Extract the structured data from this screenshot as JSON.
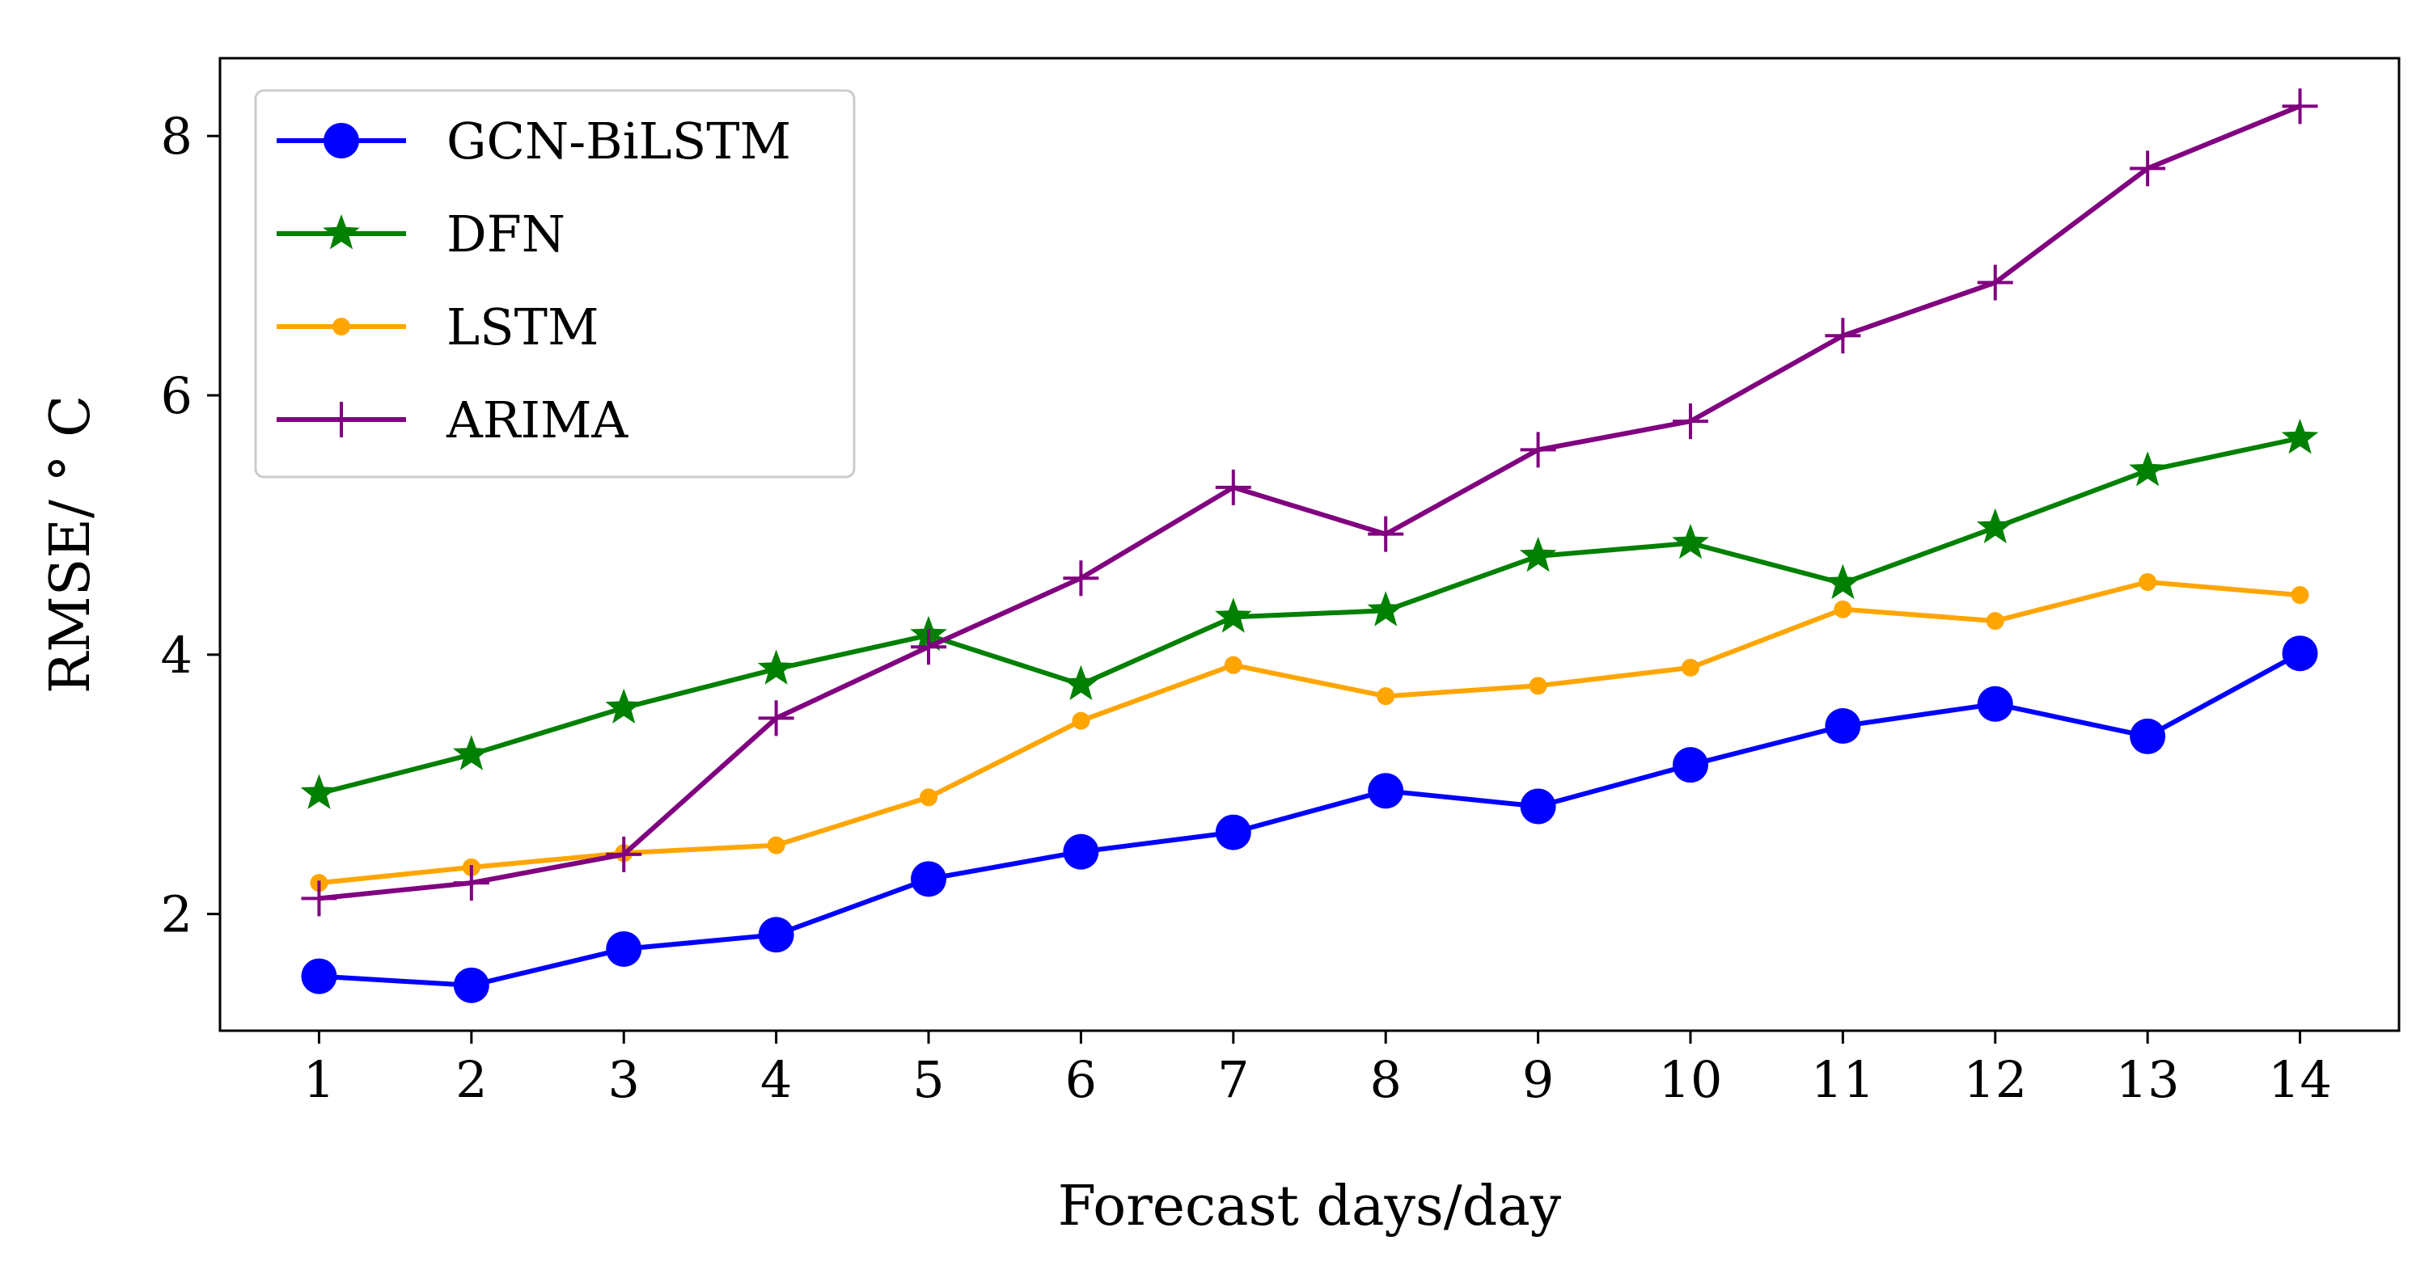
{
  "chart_data": {
    "type": "line",
    "xlabel": "Forecast days/day",
    "ylabel": "RMSE/ ° C",
    "x": [
      1,
      2,
      3,
      4,
      5,
      6,
      7,
      8,
      9,
      10,
      11,
      12,
      13,
      14
    ],
    "xlim": [
      0.35,
      14.65
    ],
    "ylim": [
      1.1,
      8.6
    ],
    "yticks": [
      2,
      4,
      6,
      8
    ],
    "grid": false,
    "legend_position": "top-left",
    "series": [
      {
        "name": "GCN-BiLSTM",
        "color": "#0000ff",
        "marker": "circle",
        "values": [
          1.52,
          1.45,
          1.73,
          1.84,
          2.27,
          2.48,
          2.63,
          2.95,
          2.83,
          3.15,
          3.45,
          3.62,
          3.37,
          4.01
        ]
      },
      {
        "name": "DFN",
        "color": "#008000",
        "marker": "star",
        "values": [
          2.93,
          3.23,
          3.59,
          3.89,
          4.15,
          3.77,
          4.29,
          4.34,
          4.76,
          4.86,
          4.55,
          4.98,
          5.42,
          5.67
        ]
      },
      {
        "name": "LSTM",
        "color": "#ffa500",
        "marker": "point",
        "values": [
          2.24,
          2.36,
          2.47,
          2.53,
          2.9,
          3.49,
          3.92,
          3.68,
          3.76,
          3.9,
          4.35,
          4.26,
          4.56,
          4.46
        ]
      },
      {
        "name": "ARIMA",
        "color": "#800080",
        "marker": "plus",
        "values": [
          2.12,
          2.24,
          2.46,
          3.51,
          4.06,
          4.59,
          5.29,
          4.93,
          5.58,
          5.8,
          6.46,
          6.87,
          7.75,
          8.23
        ]
      }
    ]
  }
}
